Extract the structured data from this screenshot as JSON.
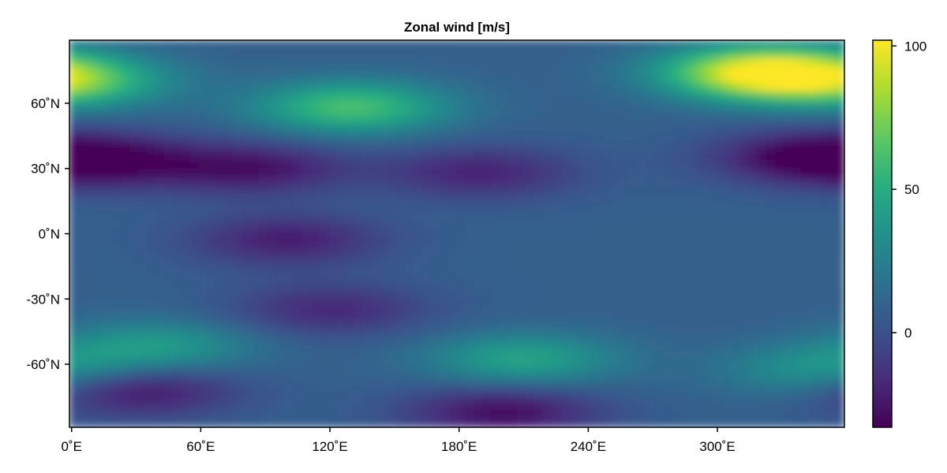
{
  "chart_data": {
    "type": "heatmap",
    "title": "Zonal wind [m/s]",
    "xlabel": "",
    "ylabel": "",
    "x_ticks": [
      {
        "value": 0,
        "label": "0˚E"
      },
      {
        "value": 60,
        "label": "60˚E"
      },
      {
        "value": 120,
        "label": "120˚E"
      },
      {
        "value": 180,
        "label": "180˚E"
      },
      {
        "value": 240,
        "label": "240˚E"
      },
      {
        "value": 300,
        "label": "300˚E"
      }
    ],
    "y_ticks": [
      {
        "value": 60,
        "label": "60˚N"
      },
      {
        "value": 30,
        "label": "30˚N"
      },
      {
        "value": 0,
        "label": "0˚N"
      },
      {
        "value": -30,
        "label": "-30˚N"
      },
      {
        "value": -60,
        "label": "-60˚N"
      }
    ],
    "xlim": [
      -1,
      359
    ],
    "ylim": [
      -89,
      89
    ],
    "colorbar": {
      "colormap": "viridis",
      "range": [
        -33,
        102
      ],
      "ticks": [
        {
          "value": 0,
          "label": "0"
        },
        {
          "value": 50,
          "label": "50"
        },
        {
          "value": 100,
          "label": "100"
        }
      ]
    },
    "field_features": [
      {
        "lon": 0,
        "lat": 70,
        "value": 60
      },
      {
        "lon": 130,
        "lat": 58,
        "value": 62
      },
      {
        "lon": 320,
        "lat": 74,
        "value": 100
      },
      {
        "lon": 20,
        "lat": 33,
        "value": -20
      },
      {
        "lon": 85,
        "lat": 30,
        "value": -25
      },
      {
        "lon": 190,
        "lat": 28,
        "value": -20
      },
      {
        "lon": 345,
        "lat": 35,
        "value": -33
      },
      {
        "lon": 100,
        "lat": -3,
        "value": -22
      },
      {
        "lon": 120,
        "lat": -35,
        "value": -18
      },
      {
        "lon": 30,
        "lat": -72,
        "value": -28
      },
      {
        "lon": 200,
        "lat": -82,
        "value": -28
      },
      {
        "lon": 210,
        "lat": -58,
        "value": 45
      },
      {
        "lon": 40,
        "lat": -52,
        "value": 40
      },
      {
        "lon": 350,
        "lat": -63,
        "value": 40
      }
    ]
  }
}
